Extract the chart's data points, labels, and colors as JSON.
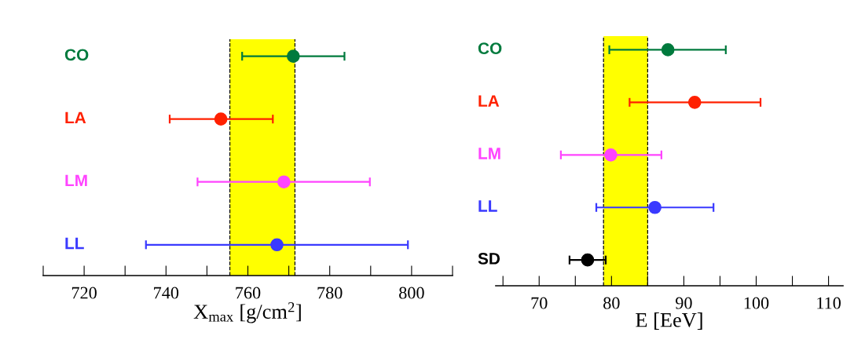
{
  "chart_data": [
    {
      "type": "scatter",
      "orientation": "horizontal",
      "marker": "circle",
      "xlabel": "X$_{max}$ [g/cm$^{2}$]",
      "categories": [
        "CO",
        "LA",
        "LM",
        "LL"
      ],
      "values": [
        771.1,
        753.4,
        768.8,
        767.1
      ],
      "colors": [
        "#007a3d",
        "#ff2000",
        "#ff44ff",
        "#3a3aff"
      ],
      "errors": [
        [
          758.6,
          783.6
        ],
        [
          740.9,
          766.1
        ],
        [
          747.7,
          789.8
        ],
        [
          735.1,
          799.1
        ]
      ],
      "xlim": [
        710,
        810
      ],
      "xticks": [
        {
          "value": 710,
          "label": null
        },
        720,
        {
          "value": 730,
          "label": null
        },
        740,
        {
          "value": 750,
          "label": null
        },
        760,
        {
          "value": 770,
          "label": null
        },
        780,
        {
          "value": 790,
          "label": null
        },
        800,
        {
          "value": 810,
          "label": null
        }
      ],
      "bands": [
        {
          "axis": "x",
          "from": 755.6,
          "to": 771.5,
          "color": "#ffff00"
        }
      ],
      "ref_lines": [
        {
          "axis": "x",
          "value": 755.6,
          "color": "#000000",
          "line_style": "dashed"
        },
        {
          "axis": "x",
          "value": 771.5,
          "color": "#000000",
          "line_style": "dashed"
        }
      ]
    },
    {
      "type": "scatter",
      "orientation": "horizontal",
      "marker": "circle",
      "xlabel": "E [EeV]",
      "categories": [
        "CO",
        "LA",
        "LM",
        "LL",
        "SD"
      ],
      "values": [
        87.8,
        91.5,
        79.9,
        86.0,
        76.7
      ],
      "colors": [
        "#007a3d",
        "#ff2000",
        "#ff44ff",
        "#3a3aff",
        "#000000"
      ],
      "errors": [
        [
          79.7,
          95.8
        ],
        [
          82.5,
          100.6
        ],
        [
          73.0,
          86.9
        ],
        [
          77.9,
          94.1
        ],
        [
          74.2,
          79.2
        ]
      ],
      "xlim": [
        64,
        112
      ],
      "xticks": [
        {
          "value": 65,
          "label": null
        },
        70,
        {
          "value": 75,
          "label": null
        },
        80,
        {
          "value": 85,
          "label": null
        },
        90,
        {
          "value": 95,
          "label": null
        },
        100,
        {
          "value": 105,
          "label": null
        },
        110
      ],
      "bands": [
        {
          "axis": "x",
          "from": 78.9,
          "to": 85.0,
          "color": "#ffff00"
        }
      ],
      "ref_lines": [
        {
          "axis": "x",
          "value": 78.9,
          "color": "#000000",
          "line_style": "dashed"
        },
        {
          "axis": "x",
          "value": 85.0,
          "color": "#000000",
          "line_style": "dashed"
        }
      ]
    }
  ]
}
